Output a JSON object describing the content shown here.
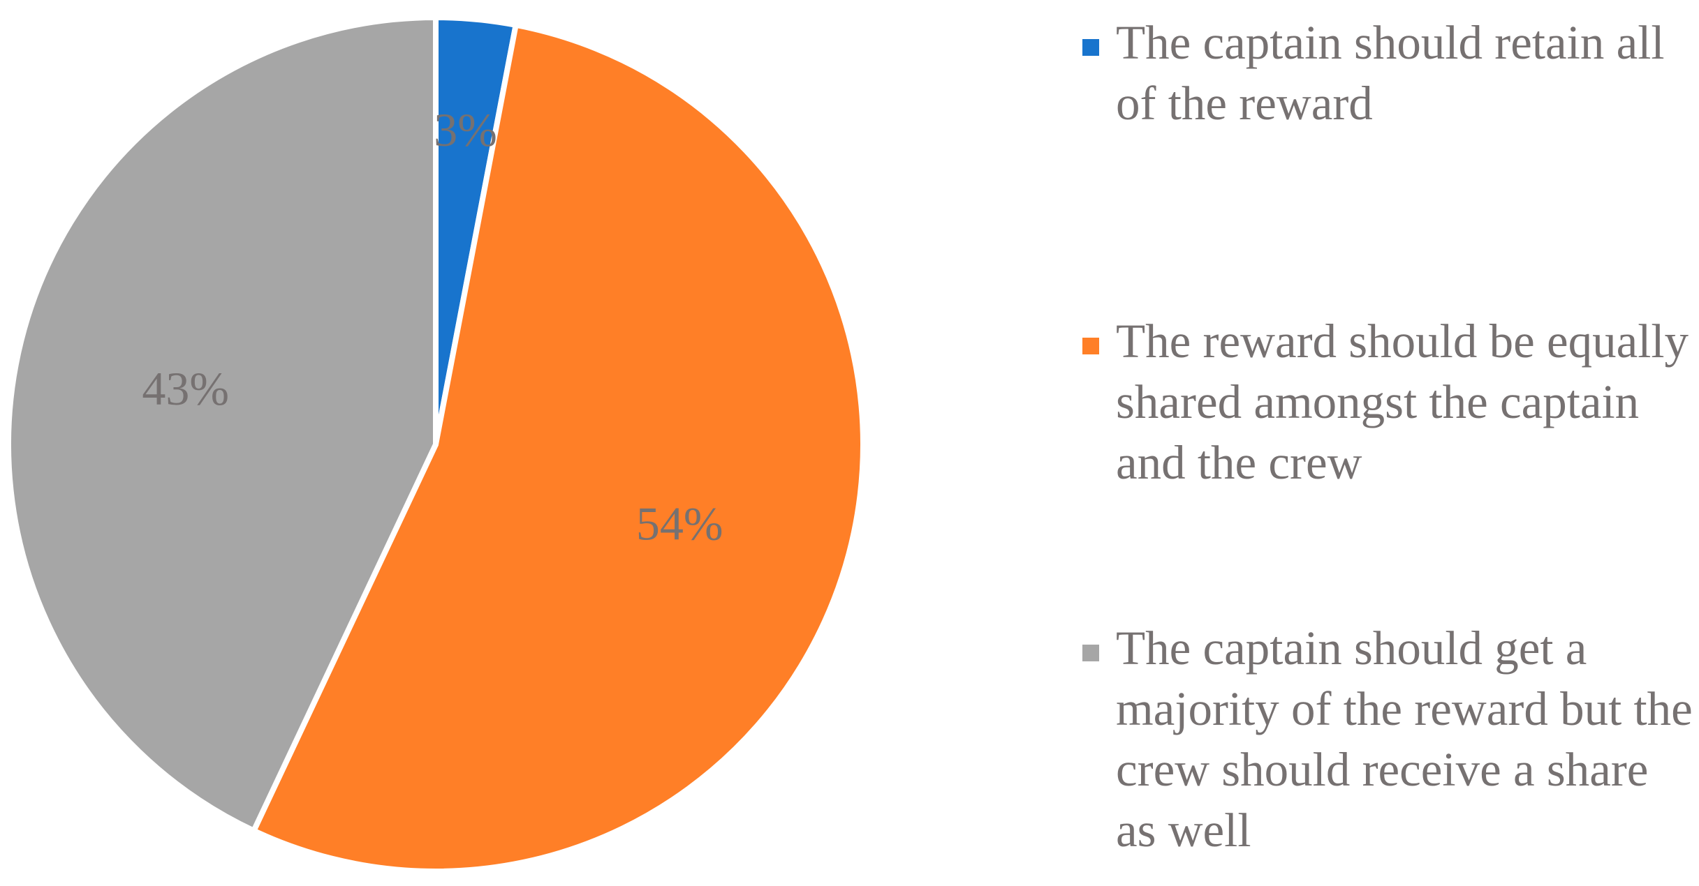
{
  "chart_data": {
    "type": "pie",
    "categories": [
      "The captain should retain all of the reward",
      "The reward should be equally shared amongst the captain and the crew",
      "The captain should get a majority of the reward but the crew should receive a share as well"
    ],
    "values": [
      3,
      54,
      43
    ],
    "data_labels": [
      "3%",
      "54%",
      "43%"
    ],
    "colors": [
      "#1874CD",
      "#FF7F27",
      "#A6A6A6"
    ],
    "label_color": "#767171",
    "legend_placement": "right",
    "title": ""
  }
}
